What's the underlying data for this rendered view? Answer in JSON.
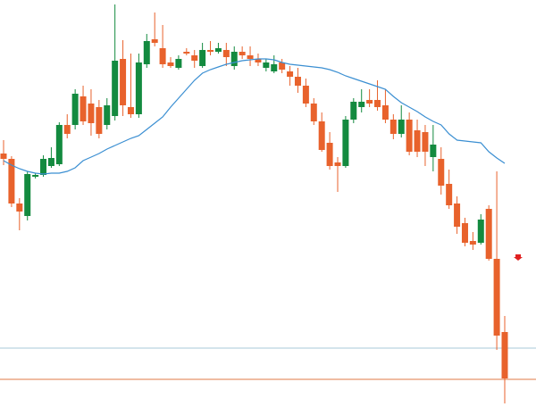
{
  "chart_data": {
    "type": "candlestick",
    "open": [
      284,
      278,
      228,
      214,
      258,
      260,
      270,
      272,
      316,
      316,
      348,
      340,
      336,
      316,
      326,
      390,
      336,
      328,
      384,
      412,
      402,
      386,
      380,
      398,
      394,
      382,
      400,
      398,
      400,
      382,
      398,
      394,
      390,
      380,
      376,
      386,
      376,
      370,
      360,
      340,
      320,
      296,
      274,
      270,
      322,
      336,
      344,
      344,
      338,
      322,
      306,
      322,
      310,
      308,
      280,
      278,
      250,
      228,
      206,
      186,
      184,
      222,
      166,
      84
    ],
    "high": [
      299,
      281,
      234,
      264,
      262,
      282,
      291,
      319,
      328,
      356,
      360,
      356,
      344,
      346,
      451,
      411,
      396,
      396,
      418,
      442,
      428,
      392,
      394,
      402,
      400,
      408,
      410,
      408,
      408,
      404,
      404,
      404,
      396,
      390,
      394,
      390,
      382,
      380,
      368,
      346,
      330,
      308,
      280,
      326,
      346,
      356,
      356,
      366,
      356,
      328,
      338,
      330,
      322,
      316,
      316,
      291,
      266,
      236,
      212,
      196,
      216,
      226,
      264,
      102
    ],
    "low": [
      271,
      224,
      198,
      209,
      256,
      258,
      268,
      270,
      301,
      311,
      316,
      304,
      301,
      311,
      321,
      326,
      324,
      324,
      380,
      404,
      380,
      380,
      378,
      394,
      380,
      380,
      394,
      396,
      382,
      378,
      390,
      382,
      382,
      376,
      374,
      374,
      360,
      352,
      336,
      316,
      286,
      266,
      241,
      268,
      318,
      330,
      336,
      332,
      318,
      300,
      302,
      282,
      280,
      270,
      264,
      238,
      222,
      194,
      180,
      176,
      182,
      164,
      64,
      4
    ],
    "close": [
      278,
      228,
      219,
      261,
      260,
      278,
      279,
      316,
      306,
      351,
      320,
      318,
      306,
      338,
      388,
      338,
      328,
      386,
      410,
      408,
      384,
      382,
      390,
      396,
      388,
      400,
      398,
      402,
      392,
      398,
      394,
      390,
      386,
      386,
      384,
      378,
      370,
      360,
      340,
      320,
      288,
      270,
      270,
      322,
      342,
      342,
      340,
      336,
      322,
      306,
      322,
      286,
      286,
      286,
      294,
      248,
      226,
      202,
      184,
      182,
      210,
      166,
      80,
      32
    ],
    "up_color": "#138a3f",
    "down_color": "#e8622c",
    "ylim": [
      0,
      456
    ],
    "moving_average": {
      "color": "#3b8fd2",
      "values": [
        276,
        271,
        267,
        264,
        262,
        261,
        262,
        262,
        264,
        268,
        276,
        280,
        284,
        289,
        293,
        297,
        301,
        304,
        311,
        318,
        325,
        336,
        346,
        356,
        366,
        374,
        378,
        381,
        384,
        386,
        388,
        389,
        390,
        390,
        389,
        386,
        384,
        383,
        382,
        381,
        380,
        378,
        375,
        371,
        368,
        365,
        362,
        359,
        356,
        348,
        341,
        336,
        331,
        325,
        320,
        316,
        306,
        299,
        298,
        297,
        296,
        286,
        279,
        273
      ]
    },
    "hlines": [
      {
        "value": 66,
        "color": "#a9c9d8"
      },
      {
        "value": 31,
        "color": "#e07a45"
      }
    ]
  }
}
